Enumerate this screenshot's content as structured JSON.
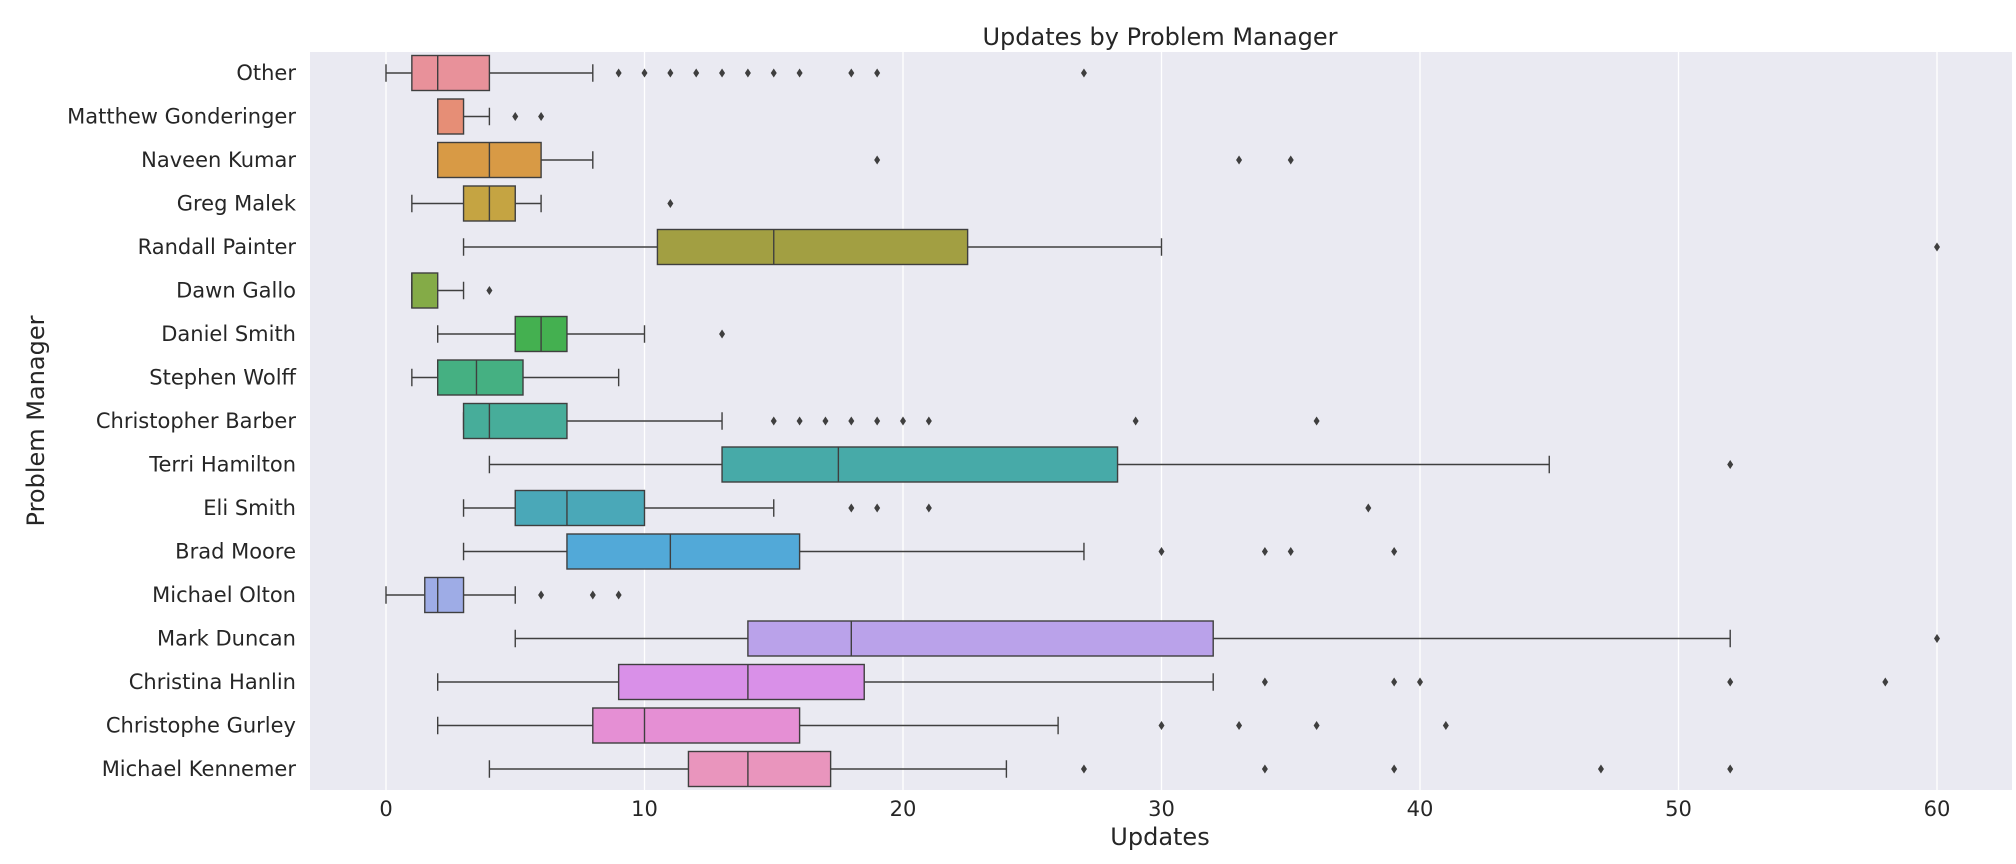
{
  "chart_data": {
    "type": "boxplot",
    "orientation": "horizontal",
    "title": "Updates by Problem Manager",
    "xlabel": "Updates",
    "ylabel": "Problem Manager",
    "xlim": [
      -3,
      63
    ],
    "xticks": [
      0,
      10,
      20,
      30,
      40,
      50,
      60
    ],
    "grid": true,
    "legend": "none",
    "categories": [
      {
        "name": "Other",
        "color": "#e8919a",
        "whislo": 0,
        "q1": 1,
        "med": 2,
        "q3": 4,
        "whishi": 8,
        "fliers": [
          9,
          10,
          11,
          12,
          13,
          14,
          15,
          16,
          18,
          19,
          27
        ]
      },
      {
        "name": "Matthew Gonderinger",
        "color": "#e68e76",
        "whislo": 2,
        "q1": 2,
        "med": 2,
        "q3": 3,
        "whishi": 4,
        "fliers": [
          5,
          6
        ]
      },
      {
        "name": "Naveen Kumar",
        "color": "#d89a45",
        "whislo": 2,
        "q1": 2,
        "med": 4,
        "q3": 6,
        "whishi": 8,
        "fliers": [
          19,
          33,
          35
        ]
      },
      {
        "name": "Greg Malek",
        "color": "#c5a442",
        "whislo": 1,
        "q1": 3,
        "med": 4,
        "q3": 5,
        "whishi": 6,
        "fliers": [
          11
        ]
      },
      {
        "name": "Randall Painter",
        "color": "#a29f42",
        "whislo": 3,
        "q1": 10.5,
        "med": 15,
        "q3": 22.5,
        "whishi": 30,
        "fliers": [
          60
        ]
      },
      {
        "name": "Dawn Gallo",
        "color": "#84ab47",
        "whislo": 1,
        "q1": 1,
        "med": 1,
        "q3": 2,
        "whishi": 3,
        "fliers": [
          4
        ]
      },
      {
        "name": "Daniel Smith",
        "color": "#44b050",
        "whislo": 2,
        "q1": 5,
        "med": 6,
        "q3": 7,
        "whishi": 10,
        "fliers": [
          13
        ]
      },
      {
        "name": "Stephen Wolff",
        "color": "#45b082",
        "whislo": 1,
        "q1": 2,
        "med": 3.5,
        "q3": 5.3,
        "whishi": 9,
        "fliers": []
      },
      {
        "name": "Christopher Barber",
        "color": "#47ad9a",
        "whislo": 3,
        "q1": 3,
        "med": 4,
        "q3": 7,
        "whishi": 13,
        "fliers": [
          15,
          16,
          17,
          18,
          19,
          20,
          21,
          29,
          36
        ]
      },
      {
        "name": "Terri Hamilton",
        "color": "#47aaa8",
        "whislo": 4,
        "q1": 13,
        "med": 17.5,
        "q3": 28.3,
        "whishi": 45,
        "fliers": [
          52
        ]
      },
      {
        "name": "Eli Smith",
        "color": "#4aa8b8",
        "whislo": 3,
        "q1": 5,
        "med": 7,
        "q3": 10,
        "whishi": 15,
        "fliers": [
          18,
          19,
          21,
          38
        ]
      },
      {
        "name": "Brad Moore",
        "color": "#52a9d8",
        "whislo": 3,
        "q1": 7,
        "med": 11,
        "q3": 16,
        "whishi": 27,
        "fliers": [
          30,
          34,
          35,
          39
        ]
      },
      {
        "name": "Michael Olton",
        "color": "#9eace6",
        "whislo": 0,
        "q1": 1.5,
        "med": 2,
        "q3": 3,
        "whishi": 5,
        "fliers": [
          6,
          8,
          9
        ]
      },
      {
        "name": "Mark Duncan",
        "color": "#baa2ea",
        "whislo": 5,
        "q1": 14,
        "med": 18,
        "q3": 32,
        "whishi": 52,
        "fliers": [
          60
        ]
      },
      {
        "name": "Christina Hanlin",
        "color": "#d990e8",
        "whislo": 2,
        "q1": 9,
        "med": 14,
        "q3": 18.5,
        "whishi": 32,
        "fliers": [
          34,
          39,
          40,
          52,
          58
        ]
      },
      {
        "name": "Christophe Gurley",
        "color": "#e58fd4",
        "whislo": 2,
        "q1": 8,
        "med": 10,
        "q3": 16,
        "whishi": 26,
        "fliers": [
          30,
          33,
          36,
          41
        ]
      },
      {
        "name": "Michael Kennemer",
        "color": "#e995bd",
        "whislo": 4,
        "q1": 11.7,
        "med": 14,
        "q3": 17.2,
        "whishi": 24,
        "fliers": [
          27,
          34,
          39,
          47,
          52
        ]
      }
    ]
  }
}
